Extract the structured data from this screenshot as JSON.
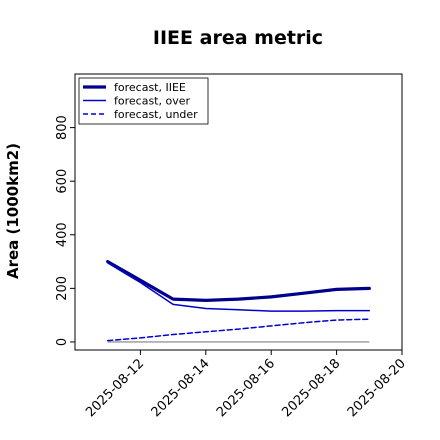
{
  "chart_data": {
    "type": "line",
    "title": "IIEE area metric",
    "xlabel": "",
    "ylabel": "Area (1000km2)",
    "x": [
      "2025-08-11",
      "2025-08-12",
      "2025-08-13",
      "2025-08-14",
      "2025-08-15",
      "2025-08-16",
      "2025-08-17",
      "2025-08-18",
      "2025-08-19"
    ],
    "xticks": [
      "2025-08-12",
      "2025-08-14",
      "2025-08-16",
      "2025-08-18",
      "2025-08-20"
    ],
    "highlight_tick": "2025-08-12",
    "xlim": [
      "2025-08-10",
      "2025-08-20"
    ],
    "yticks": [
      0,
      200,
      400,
      600,
      800
    ],
    "ylim": [
      -30,
      1000
    ],
    "grid": false,
    "legend_position": "top-left",
    "series": [
      {
        "name": "forecast, IIEE",
        "style": "thick-solid",
        "color": "#00008b",
        "values": [
          300,
          230,
          160,
          155,
          160,
          168,
          182,
          196,
          200
        ]
      },
      {
        "name": "forecast, over",
        "style": "solid",
        "color": "#0000cd",
        "values": [
          295,
          222,
          140,
          125,
          120,
          115,
          115,
          117,
          117
        ]
      },
      {
        "name": "forecast, under",
        "style": "dashed",
        "color": "#0000cd",
        "values": [
          5,
          15,
          28,
          38,
          48,
          60,
          72,
          82,
          85
        ]
      }
    ],
    "baseline": {
      "value": 0,
      "color": "#808080"
    }
  },
  "colors": {
    "highlight_tick": "#228b22",
    "baseline": "#808080"
  }
}
